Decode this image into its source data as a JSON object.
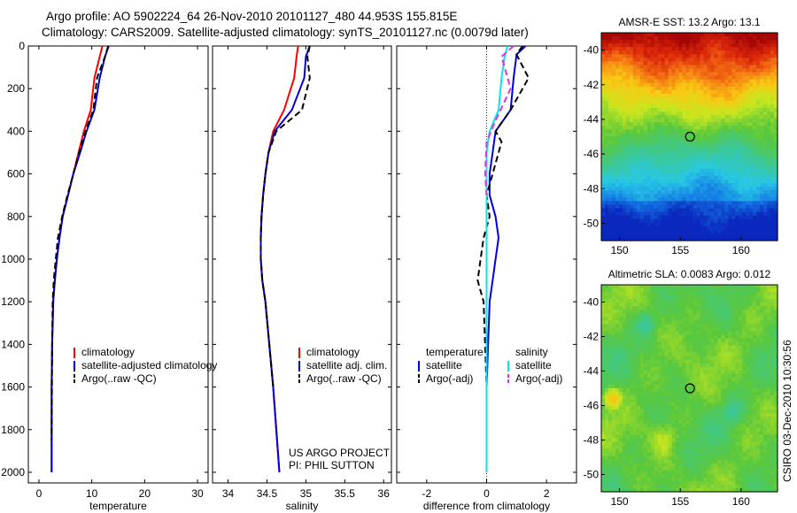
{
  "header": {
    "line1": "Argo profile: AO 5902224_64 26-Nov-2010 20101127_480 44.953S 155.815E",
    "line2": "Climatology: CARS2009. Satellite-adjusted climatology: synTS_20101127.nc (0.0079d later)"
  },
  "sidebar_text": "CSIRO 03-Dec-2010 10:30:56",
  "colors": {
    "climatology": "#ff0000",
    "satellite": "#0000dd",
    "argo": "#000000",
    "satellite_salinity": "#00e5ee",
    "argo_salinity_adj": "#dd33dd"
  },
  "chart_data": [
    {
      "id": "temperature",
      "type": "line",
      "xlabel": "temperature",
      "ylabel": "",
      "xlim": [
        -2,
        32
      ],
      "ylim": [
        2050,
        0
      ],
      "y_reversed": true,
      "xticks": [
        0,
        10,
        20,
        30
      ],
      "yticks": [
        0,
        200,
        400,
        600,
        800,
        1000,
        1200,
        1400,
        1600,
        1800,
        2000
      ],
      "legend": [
        {
          "label": "climatology",
          "color": "#ff0000",
          "dash": "solid"
        },
        {
          "label": "satellite-adjusted climatology",
          "color": "#0000dd",
          "dash": "solid"
        },
        {
          "label": "Argo(..raw -QC)",
          "color": "#000000",
          "dash": "dashed"
        }
      ],
      "series": [
        {
          "name": "climatology",
          "color": "#ff0000",
          "dash": "solid",
          "x": [
            12.0,
            11.5,
            10.5,
            9.8,
            8.5,
            7.5,
            6.5,
            5.5,
            4.5,
            3.9,
            3.4,
            3.0,
            2.7,
            2.5,
            2.4,
            2.4
          ],
          "y": [
            0,
            50,
            150,
            300,
            400,
            500,
            600,
            700,
            800,
            900,
            1000,
            1100,
            1200,
            1400,
            1600,
            2000
          ]
        },
        {
          "name": "satellite-adjusted climatology",
          "color": "#0000dd",
          "dash": "solid",
          "x": [
            13.2,
            12.5,
            11.5,
            10.5,
            9.0,
            7.8,
            6.5,
            5.5,
            4.5,
            3.9,
            3.4,
            3.0,
            2.7,
            2.5,
            2.4,
            2.4
          ],
          "y": [
            0,
            50,
            150,
            300,
            400,
            500,
            600,
            700,
            800,
            900,
            1000,
            1100,
            1200,
            1400,
            1600,
            2000
          ]
        },
        {
          "name": "Argo(..raw -QC)",
          "color": "#000000",
          "dash": "dashed",
          "x": [
            13.1,
            12.5,
            11.0,
            10.3,
            8.8,
            7.6,
            6.5,
            5.4,
            4.4,
            3.6,
            3.2,
            2.8,
            2.6,
            2.5,
            2.4
          ],
          "y": [
            0,
            50,
            150,
            300,
            400,
            500,
            600,
            700,
            800,
            900,
            1000,
            1100,
            1200,
            1400,
            1850
          ]
        }
      ]
    },
    {
      "id": "salinity",
      "type": "line",
      "xlabel": "salinity",
      "ylabel": "",
      "xlim": [
        33.8,
        36.1
      ],
      "ylim": [
        2050,
        0
      ],
      "y_reversed": true,
      "xticks": [
        34,
        34.5,
        35,
        35.5,
        36
      ],
      "xticklabels": [
        "34",
        "34.5",
        "35",
        "35.5",
        "36"
      ],
      "legend": [
        {
          "label": "climatology",
          "color": "#ff0000",
          "dash": "solid"
        },
        {
          "label": "satellite adj. clim.",
          "color": "#0000dd",
          "dash": "solid"
        },
        {
          "label": "Argo(..raw -QC)",
          "color": "#000000",
          "dash": "dashed"
        }
      ],
      "annotation": [
        "US ARGO PROJECT",
        "PI: PHIL SUTTON"
      ],
      "series": [
        {
          "name": "climatology",
          "color": "#ff0000",
          "dash": "solid",
          "x": [
            34.9,
            34.88,
            34.85,
            34.72,
            34.58,
            34.52,
            34.48,
            34.45,
            34.43,
            34.42,
            34.42,
            34.44,
            34.48,
            34.53,
            34.58,
            34.62,
            34.66
          ],
          "y": [
            0,
            50,
            150,
            300,
            400,
            500,
            600,
            700,
            800,
            900,
            1000,
            1100,
            1200,
            1400,
            1600,
            1800,
            2000
          ]
        },
        {
          "name": "satellite adj. clim.",
          "color": "#0000dd",
          "dash": "solid",
          "x": [
            35.05,
            35.0,
            34.98,
            34.82,
            34.6,
            34.52,
            34.48,
            34.45,
            34.43,
            34.42,
            34.42,
            34.44,
            34.48,
            34.53,
            34.58,
            34.62,
            34.66
          ],
          "y": [
            0,
            50,
            150,
            300,
            400,
            500,
            600,
            700,
            800,
            900,
            1000,
            1100,
            1200,
            1400,
            1600,
            1800,
            2000
          ]
        },
        {
          "name": "Argo(..raw -QC)",
          "color": "#000000",
          "dash": "dashed",
          "x": [
            35.05,
            35.02,
            35.05,
            34.95,
            34.62,
            34.52,
            34.48,
            34.45,
            34.43,
            34.42,
            34.42,
            34.44,
            34.48,
            34.53,
            34.58
          ],
          "y": [
            0,
            50,
            150,
            300,
            400,
            500,
            600,
            700,
            800,
            900,
            1000,
            1100,
            1200,
            1400,
            1600
          ]
        }
      ]
    },
    {
      "id": "difference",
      "type": "line",
      "xlabel": "difference from climatology",
      "ylabel": "",
      "xlim": [
        -3,
        3
      ],
      "ylim": [
        2050,
        0
      ],
      "y_reversed": true,
      "xticks": [
        -2,
        0,
        2
      ],
      "zero_line": "dotted",
      "legend_left": [
        {
          "label": "temperature",
          "color": "",
          "dash": "none"
        },
        {
          "label": "satellite",
          "color": "#0000dd",
          "dash": "solid"
        },
        {
          "label": "Argo(-adj)",
          "color": "#000000",
          "dash": "dashed"
        }
      ],
      "legend_right": [
        {
          "label": "salinity",
          "color": "",
          "dash": "none"
        },
        {
          "label": "satellite",
          "color": "#00e5ee",
          "dash": "solid"
        },
        {
          "label": "Argo(-adj)",
          "color": "#dd33dd",
          "dash": "dashed"
        }
      ],
      "series": [
        {
          "name": "temperature satellite",
          "color": "#0000dd",
          "dash": "solid",
          "x": [
            1.3,
            1.0,
            0.9,
            0.8,
            0.3,
            0.2,
            0.1,
            0.1,
            0.3,
            0.4,
            0.3,
            0.2,
            0.1,
            0.05,
            0.0,
            0.0
          ],
          "y": [
            0,
            40,
            150,
            300,
            400,
            500,
            600,
            700,
            800,
            900,
            1000,
            1100,
            1200,
            1400,
            1600,
            2000
          ]
        },
        {
          "name": "temperature Argo(-adj)",
          "color": "#000000",
          "dash": "dashed",
          "x": [
            1.2,
            1.0,
            1.4,
            0.8,
            0.3,
            0.5,
            0.2,
            0.0,
            0.1,
            -0.1,
            -0.2,
            -0.3,
            -0.1,
            -0.05,
            0.0
          ],
          "y": [
            0,
            40,
            150,
            300,
            400,
            450,
            600,
            700,
            800,
            900,
            1000,
            1100,
            1200,
            1400,
            1600
          ]
        },
        {
          "name": "salinity satellite",
          "color": "#00e5ee",
          "dash": "solid",
          "x": [
            0.7,
            0.6,
            0.5,
            0.4,
            0.1,
            0.0,
            0.0,
            0.0,
            0.0,
            0.0,
            0.0,
            0.0,
            0.0,
            0.0,
            0.0
          ],
          "y": [
            0,
            50,
            150,
            300,
            400,
            500,
            600,
            800,
            900,
            1000,
            1200,
            1400,
            1600,
            1800,
            2000
          ]
        },
        {
          "name": "salinity Argo(-adj)",
          "color": "#dd33dd",
          "dash": "dashed",
          "x": [
            0.9,
            0.5,
            0.8,
            0.3,
            0.0,
            -0.05,
            0.0
          ],
          "y": [
            0,
            50,
            200,
            350,
            450,
            600,
            700
          ]
        }
      ]
    },
    {
      "id": "sst_map",
      "type": "heatmap",
      "title": "AMSR-E SST: 13.2 Argo: 13.1",
      "xlim": [
        148.5,
        163
      ],
      "ylim": [
        -51,
        -39
      ],
      "xticks": [
        150,
        155,
        160
      ],
      "yticks": [
        -40,
        -42,
        -44,
        -46,
        -48,
        -50
      ],
      "marker": {
        "x": 155.8,
        "y": -45.0
      }
    },
    {
      "id": "sla_map",
      "type": "heatmap",
      "title": "Altimetric SLA: 0.0083 Argo: 0.012",
      "xlim": [
        148.5,
        163
      ],
      "ylim": [
        -51,
        -39
      ],
      "xticks": [
        150,
        155,
        160
      ],
      "yticks": [
        -40,
        -42,
        -44,
        -46,
        -48,
        -50
      ],
      "marker": {
        "x": 155.8,
        "y": -45.0
      }
    }
  ]
}
